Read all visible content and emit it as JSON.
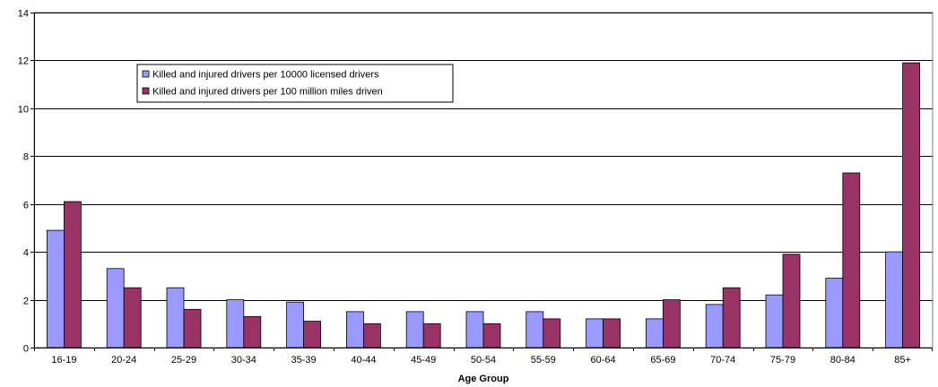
{
  "chart_data": {
    "type": "bar",
    "xlabel": "Age Group",
    "ylabel": "",
    "ylim": [
      0,
      14
    ],
    "yticks": [
      0,
      2,
      4,
      6,
      8,
      10,
      12,
      14
    ],
    "grid": "horizontal",
    "legend_position": "top-left",
    "categories": [
      "16-19",
      "20-24",
      "25-29",
      "30-34",
      "35-39",
      "40-44",
      "45-49",
      "50-54",
      "55-59",
      "60-64",
      "65-69",
      "70-74",
      "75-79",
      "80-84",
      "85+"
    ],
    "series": [
      {
        "name": "Killed and injured drivers per 10000 licensed drivers",
        "color": "#9999ff",
        "values": [
          4.9,
          3.3,
          2.5,
          2.0,
          1.9,
          1.5,
          1.5,
          1.5,
          1.5,
          1.2,
          1.2,
          1.8,
          2.2,
          2.9,
          4.0
        ]
      },
      {
        "name": "Killed and injured drivers per 100 million miles driven",
        "color": "#993366",
        "values": [
          6.1,
          2.5,
          1.6,
          1.3,
          1.1,
          1.0,
          1.0,
          1.0,
          1.2,
          1.2,
          2.0,
          2.5,
          3.9,
          7.3,
          11.9
        ]
      }
    ]
  }
}
